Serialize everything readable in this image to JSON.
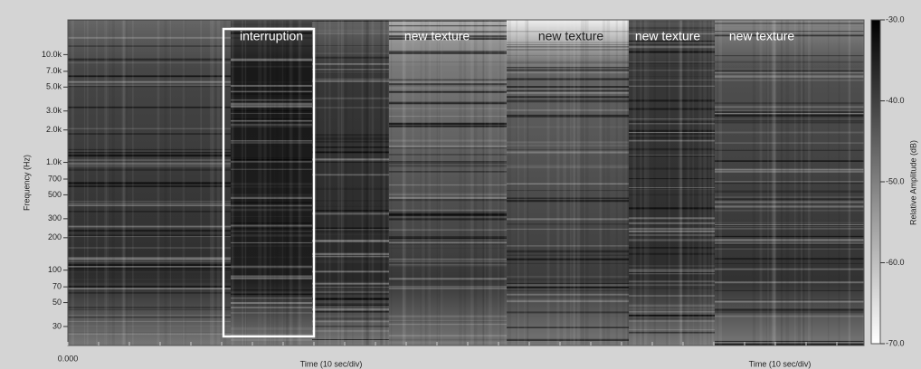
{
  "y_axis": {
    "label": "Frequency (Hz)",
    "scale": "log",
    "lim": [
      20,
      21000
    ],
    "ticks": [
      {
        "value": 10000,
        "label": "10.0k"
      },
      {
        "value": 7000,
        "label": "7.0k"
      },
      {
        "value": 5000,
        "label": "5.0k"
      },
      {
        "value": 3000,
        "label": "3.0k"
      },
      {
        "value": 2000,
        "label": "2.0k"
      },
      {
        "value": 1000,
        "label": "1.0k"
      },
      700,
      500,
      300,
      200,
      100,
      70,
      50,
      30
    ]
  },
  "x_axis": {
    "start_label": "0.000",
    "labels": [
      "Time (10 sec/div)",
      "Time (10 sec/div)"
    ]
  },
  "colorbar": {
    "label": "Relative Amplitude (dB)",
    "lim": [
      -30,
      -70
    ],
    "ticks": [
      {
        "value": -30,
        "label": "-30.0"
      },
      {
        "value": -40,
        "label": "-40.0"
      },
      {
        "value": -50,
        "label": "-50.0"
      },
      {
        "value": -60,
        "label": "-60.0"
      },
      {
        "value": -70,
        "label": "-70.0"
      }
    ]
  },
  "annotations": [
    "interruption",
    "new texture",
    "new texture",
    "new texture",
    "new texture"
  ]
}
